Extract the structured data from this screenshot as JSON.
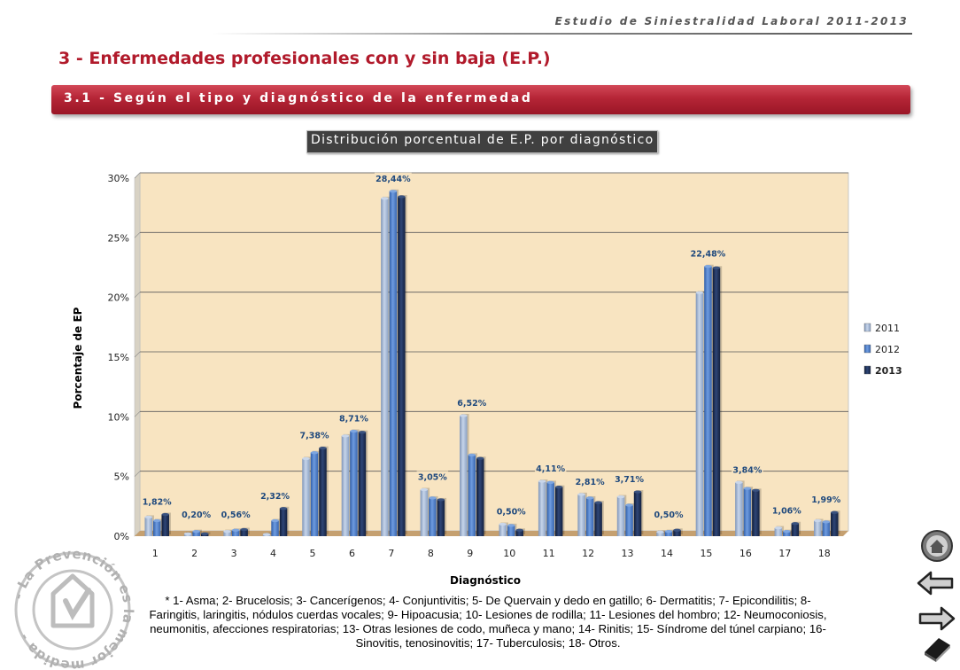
{
  "header": {
    "study_title": "Estudio de Siniestralidad Laboral 2011-2013",
    "section_title": "3 - Enfermedades profesionales con y sin baja (E.P.)",
    "subsection_title": "3.1 - Según el tipo y diagnóstico de la enfermedad"
  },
  "chart_data": {
    "type": "bar",
    "title": "Distribución porcentual de E.P. por diagnóstico",
    "xlabel": "Diagnóstico",
    "ylabel": "Porcentaje de EP",
    "ylim": [
      0,
      30
    ],
    "yticks": [
      "0%",
      "5%",
      "10%",
      "15%",
      "20%",
      "25%",
      "30%"
    ],
    "grid": true,
    "legend_position": "right",
    "categories": [
      "1",
      "2",
      "3",
      "4",
      "5",
      "6",
      "7",
      "8",
      "9",
      "10",
      "11",
      "12",
      "13",
      "14",
      "15",
      "16",
      "17",
      "18"
    ],
    "series": [
      {
        "name": "2011",
        "color": "#9bb2d3",
        "values": [
          1.6,
          0.2,
          0.4,
          0.15,
          6.5,
          8.4,
          28.3,
          3.9,
          10.1,
          1.0,
          4.6,
          3.5,
          3.3,
          0.35,
          20.4,
          4.5,
          0.7,
          1.3
        ]
      },
      {
        "name": "2012",
        "color": "#4a7bc8",
        "values": [
          1.3,
          0.4,
          0.5,
          1.3,
          7.0,
          8.8,
          28.9,
          3.2,
          6.8,
          0.9,
          4.5,
          3.2,
          2.6,
          0.4,
          22.6,
          4.0,
          0.4,
          1.2
        ]
      },
      {
        "name": "2013",
        "color": "#1d2d52",
        "values": [
          1.82,
          0.2,
          0.56,
          2.32,
          7.38,
          8.71,
          28.44,
          3.05,
          6.52,
          0.5,
          4.11,
          2.81,
          3.71,
          0.5,
          22.48,
          3.84,
          1.06,
          1.99
        ]
      }
    ],
    "data_labels": [
      "1,82%",
      "0,20%",
      "0,56%",
      "2,32%",
      "7,38%",
      "8,71%",
      "28,44%",
      "3,05%",
      "6,52%",
      "0,50%",
      "4,11%",
      "2,81%",
      "3,71%",
      "0,50%",
      "22,48%",
      "3,84%",
      "1,06%",
      "1,99%"
    ],
    "colors": {
      "plot_bg": "#f8e4c1",
      "floor": "#c5a070",
      "label_text": "#1f497d"
    }
  },
  "footnote": "* 1- Asma; 2- Brucelosis; 3- Cancerígenos; 4- Conjuntivitis; 5- De Quervain y dedo en gatillo; 6- Dermatitis; 7- Epicondilitis; 8- Faringitis, laringitis, nódulos cuerdas vocales; 9- Hipoacusia; 10- Lesiones de rodilla; 11- Lesiones del hombro; 12- Neumoconiosis, neumonitis, afecciones respiratorias; 13- Otras lesiones de codo, muñeca y mano; 14- Rinitis; 15- Síndrome del túnel carpiano; 16- Sinovitis, tenosinovitis; 17- Tuberculosis; 18- Otros.",
  "logo": {
    "text": "- La Prevención es la mejor medida -",
    "color": "#b0b0b0"
  },
  "nav": {
    "home_icon": "home-icon",
    "back_icon": "arrow-left-icon",
    "forward_icon": "arrow-right-icon",
    "book_icon": "book-icon"
  }
}
